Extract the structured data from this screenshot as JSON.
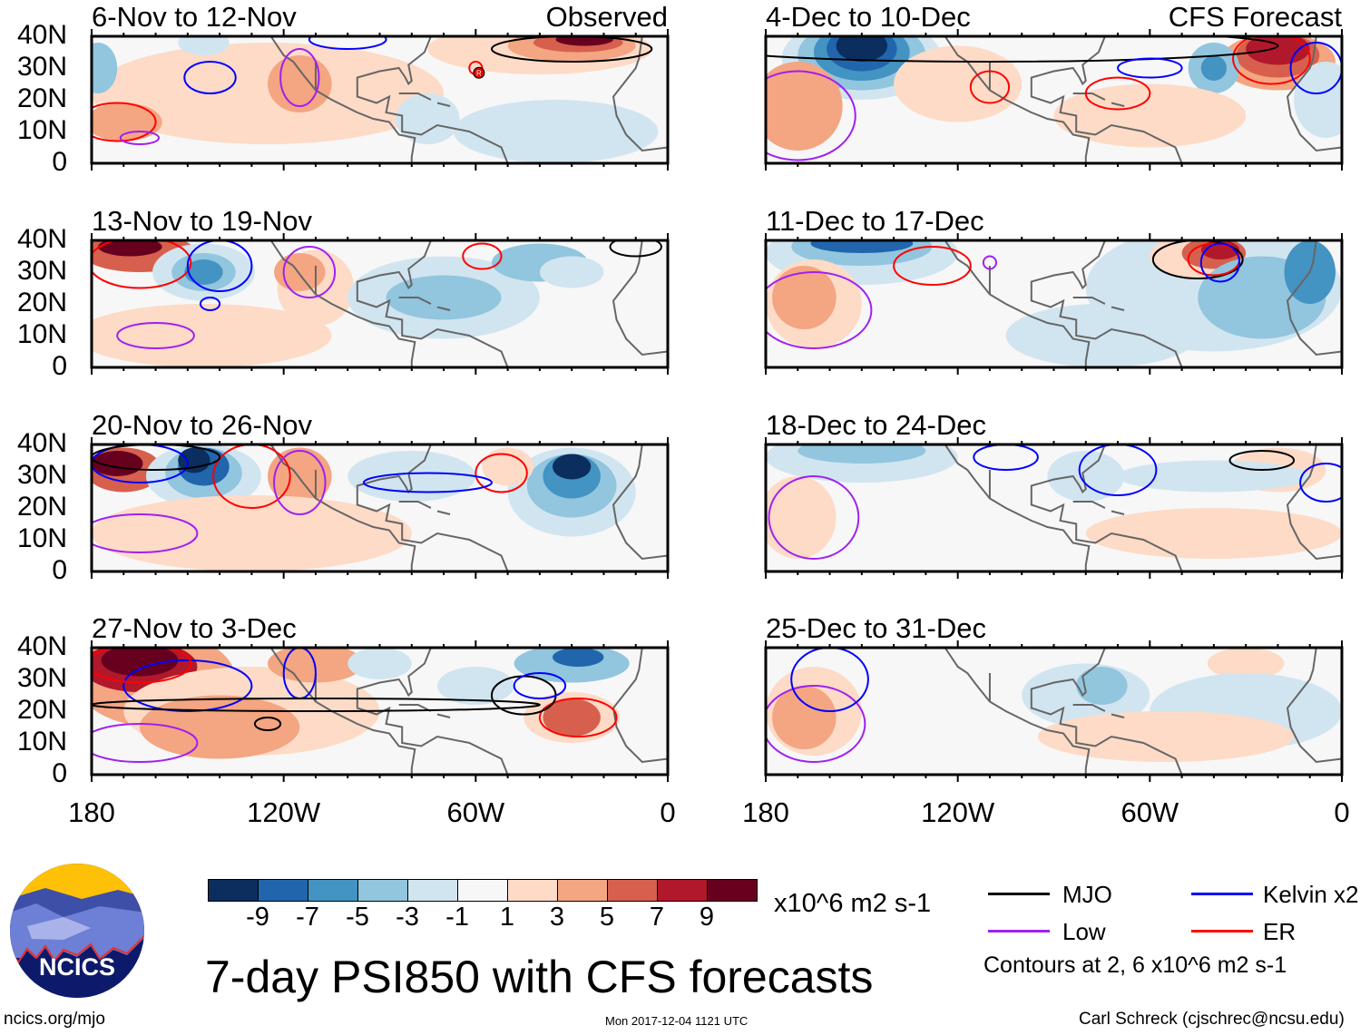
{
  "panels": [
    {
      "title": "6-Nov to 12-Nov",
      "tag": "Observed"
    },
    {
      "title": "4-Dec to 10-Dec",
      "tag": "CFS Forecast"
    },
    {
      "title": "13-Nov to 19-Nov",
      "tag": ""
    },
    {
      "title": "11-Dec to 17-Dec",
      "tag": ""
    },
    {
      "title": "20-Nov to 26-Nov",
      "tag": ""
    },
    {
      "title": "18-Dec to 24-Dec",
      "tag": ""
    },
    {
      "title": "27-Nov to 3-Dec",
      "tag": ""
    },
    {
      "title": "25-Dec to 31-Dec",
      "tag": ""
    }
  ],
  "y_ticks": [
    "40N",
    "30N",
    "20N",
    "10N",
    "0"
  ],
  "x_ticks": [
    "180",
    "120W",
    "60W",
    "0"
  ],
  "colorbar": {
    "colors": [
      "#0b2e5e",
      "#2166ac",
      "#4393c3",
      "#92c5de",
      "#d1e5f0",
      "#f7f7f7",
      "#fddbc7",
      "#f4a582",
      "#d6604d",
      "#b2182b",
      "#67001f"
    ],
    "labels": [
      "-9",
      "-7",
      "-5",
      "-3",
      "-1",
      "1",
      "3",
      "5",
      "7",
      "9"
    ],
    "units": "x10^6 m2 s-1"
  },
  "legend": {
    "items": [
      {
        "label": "MJO",
        "color": "#000000"
      },
      {
        "label": "Kelvin x2",
        "color": "#0000ff"
      },
      {
        "label": "Low",
        "color": "#a020f0"
      },
      {
        "label": "ER",
        "color": "#ff0000"
      }
    ],
    "note": "Contours at 2, 6 x10^6 m2 s-1"
  },
  "title": "7-day PSI850 with CFS forecasts",
  "logo_text": "NCICS",
  "footer": {
    "url": "ncics.org/mjo",
    "timestamp": "Mon 2017-12-04 1121 UTC",
    "credit": "Carl Schreck (cjschrec@ncsu.edu)"
  },
  "storm_marker": "R"
}
